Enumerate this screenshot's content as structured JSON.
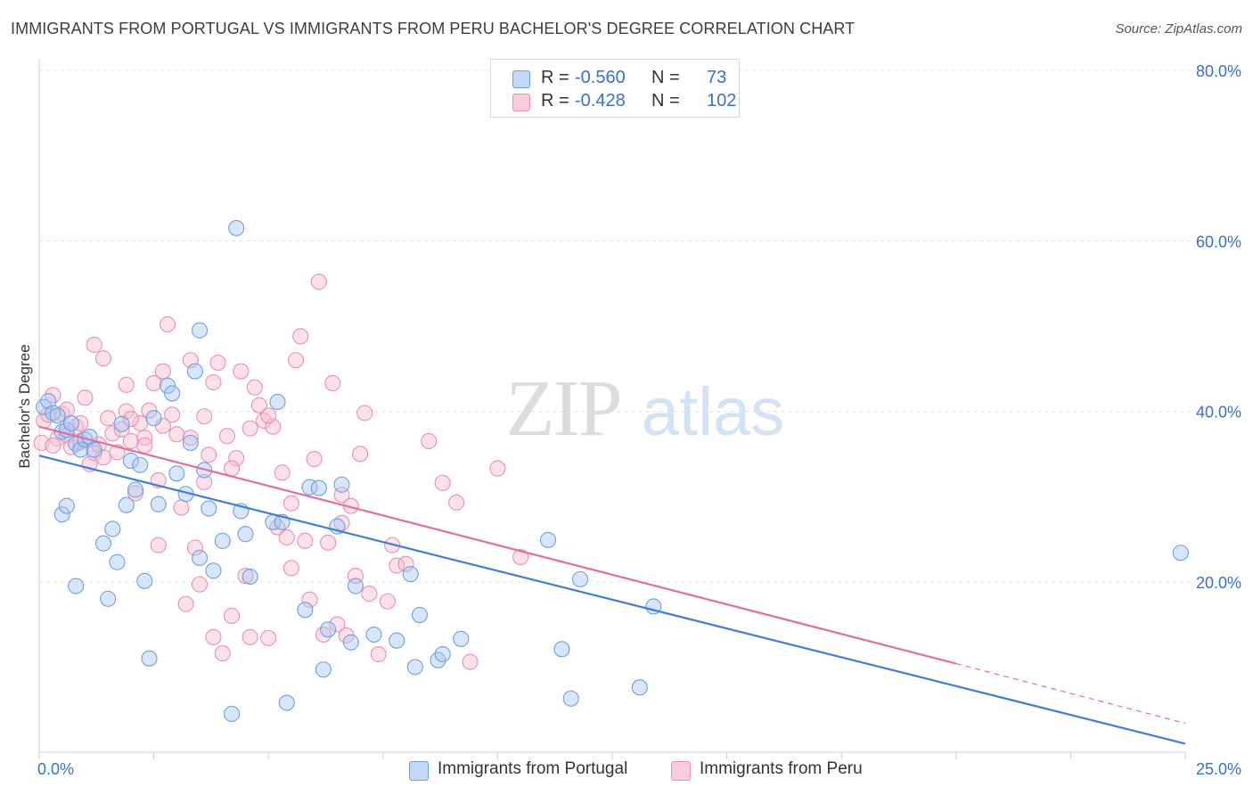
{
  "title": "IMMIGRANTS FROM PORTUGAL VS IMMIGRANTS FROM PERU BACHELOR'S DEGREE CORRELATION CHART",
  "source": "Source: ZipAtlas.com",
  "watermark": {
    "zip": "ZIP",
    "atlas": "atlas"
  },
  "legend_top": [
    {
      "r_label": "R =",
      "r_value": "-0.560",
      "n_label": "N =",
      "n_value": "73"
    },
    {
      "r_label": "R =",
      "r_value": "-0.428",
      "n_label": "N =",
      "n_value": "102"
    }
  ],
  "colors": {
    "portugal_fill": "#a9c7f2",
    "portugal_stroke": "#6f9ee3",
    "portugal_line": "#3f7fd6",
    "peru_fill": "#f7bcd0",
    "peru_stroke": "#ec8fae",
    "peru_line": "#e0709a",
    "grid": "#e3e3e3",
    "axis_text": "#3a6fcf"
  },
  "chart_data": {
    "type": "scatter",
    "title": "IMMIGRANTS FROM PORTUGAL VS IMMIGRANTS FROM PERU BACHELOR'S DEGREE CORRELATION CHART",
    "xlabel": "",
    "ylabel": "Bachelor's Degree",
    "xlim": [
      0,
      25
    ],
    "ylim": [
      0,
      80
    ],
    "x_ticks": [
      "0.0%",
      "25.0%"
    ],
    "y_ticks": [
      {
        "value": 20,
        "label": "20.0%"
      },
      {
        "value": 40,
        "label": "40.0%"
      },
      {
        "value": 60,
        "label": "60.0%"
      },
      {
        "value": 80,
        "label": "80.0%"
      }
    ],
    "series": [
      {
        "name": "Immigrants from Portugal",
        "R": -0.56,
        "N": 73,
        "trend": {
          "x0": 0,
          "y0": 34.8,
          "x1": 25,
          "y1": 1.0
        },
        "points": [
          [
            0.1,
            40.5
          ],
          [
            0.2,
            41.2
          ],
          [
            0.3,
            39.8
          ],
          [
            0.4,
            39.5
          ],
          [
            0.5,
            37.6
          ],
          [
            0.6,
            37.8
          ],
          [
            0.7,
            38.6
          ],
          [
            0.8,
            36.2
          ],
          [
            0.9,
            35.5
          ],
          [
            1.0,
            36.7
          ],
          [
            0.5,
            27.9
          ],
          [
            0.6,
            28.9
          ],
          [
            0.8,
            19.5
          ],
          [
            1.1,
            37.0
          ],
          [
            1.2,
            35.5
          ],
          [
            1.4,
            24.5
          ],
          [
            1.5,
            18.0
          ],
          [
            1.6,
            26.2
          ],
          [
            1.7,
            22.3
          ],
          [
            1.8,
            38.5
          ],
          [
            1.9,
            29.0
          ],
          [
            2.0,
            34.2
          ],
          [
            2.1,
            30.8
          ],
          [
            2.2,
            33.7
          ],
          [
            2.3,
            20.1
          ],
          [
            2.4,
            11.0
          ],
          [
            2.5,
            39.2
          ],
          [
            2.6,
            29.1
          ],
          [
            2.8,
            43.0
          ],
          [
            2.9,
            42.1
          ],
          [
            3.0,
            32.7
          ],
          [
            3.2,
            30.3
          ],
          [
            3.3,
            36.3
          ],
          [
            3.4,
            44.7
          ],
          [
            3.5,
            22.8
          ],
          [
            3.6,
            33.1
          ],
          [
            3.7,
            28.6
          ],
          [
            3.8,
            21.3
          ],
          [
            3.5,
            49.5
          ],
          [
            4.0,
            24.8
          ],
          [
            4.2,
            4.5
          ],
          [
            4.3,
            61.5
          ],
          [
            4.4,
            28.3
          ],
          [
            4.5,
            25.6
          ],
          [
            4.6,
            20.6
          ],
          [
            5.1,
            27.0
          ],
          [
            5.2,
            41.1
          ],
          [
            5.3,
            27.0
          ],
          [
            5.4,
            5.8
          ],
          [
            5.8,
            16.7
          ],
          [
            5.9,
            31.1
          ],
          [
            6.1,
            31.0
          ],
          [
            6.2,
            9.7
          ],
          [
            6.3,
            14.4
          ],
          [
            6.5,
            26.5
          ],
          [
            6.6,
            31.4
          ],
          [
            6.8,
            12.9
          ],
          [
            6.9,
            19.5
          ],
          [
            7.3,
            13.8
          ],
          [
            7.8,
            13.1
          ],
          [
            8.1,
            20.9
          ],
          [
            8.2,
            10.0
          ],
          [
            8.3,
            16.1
          ],
          [
            8.7,
            10.8
          ],
          [
            8.8,
            11.5
          ],
          [
            9.2,
            13.3
          ],
          [
            11.1,
            24.9
          ],
          [
            11.4,
            12.1
          ],
          [
            11.6,
            6.3
          ],
          [
            11.8,
            20.3
          ],
          [
            13.1,
            7.6
          ],
          [
            13.4,
            17.1
          ],
          [
            24.9,
            23.4
          ]
        ]
      },
      {
        "name": "Immigrants from Peru",
        "R": -0.428,
        "N": 102,
        "trend": {
          "x0": 0,
          "y0": 38.2,
          "x1": 20,
          "y1": 10.4,
          "dash_to_x": 25,
          "dash_to_y": 3.4
        },
        "points": [
          [
            0.05,
            36.3
          ],
          [
            0.1,
            38.9
          ],
          [
            0.2,
            39.6
          ],
          [
            0.3,
            41.9
          ],
          [
            0.4,
            36.8
          ],
          [
            0.5,
            39.7
          ],
          [
            0.6,
            37.2
          ],
          [
            0.7,
            35.8
          ],
          [
            0.8,
            38.2
          ],
          [
            0.9,
            36.4
          ],
          [
            1.0,
            41.6
          ],
          [
            1.1,
            33.8
          ],
          [
            1.2,
            47.8
          ],
          [
            1.3,
            36.1
          ],
          [
            1.4,
            46.2
          ],
          [
            1.5,
            39.2
          ],
          [
            1.6,
            37.4
          ],
          [
            1.7,
            35.2
          ],
          [
            1.8,
            37.9
          ],
          [
            1.9,
            40.0
          ],
          [
            2.0,
            36.5
          ],
          [
            2.1,
            30.4
          ],
          [
            2.2,
            38.6
          ],
          [
            2.3,
            36.9
          ],
          [
            2.4,
            40.1
          ],
          [
            2.5,
            43.3
          ],
          [
            2.6,
            24.3
          ],
          [
            2.7,
            44.7
          ],
          [
            2.8,
            50.2
          ],
          [
            2.9,
            39.6
          ],
          [
            3.0,
            37.3
          ],
          [
            3.1,
            28.7
          ],
          [
            3.2,
            17.4
          ],
          [
            3.3,
            46.0
          ],
          [
            3.4,
            24.0
          ],
          [
            3.5,
            19.7
          ],
          [
            3.6,
            39.4
          ],
          [
            3.7,
            34.9
          ],
          [
            3.8,
            13.5
          ],
          [
            3.9,
            45.7
          ],
          [
            4.0,
            11.6
          ],
          [
            4.1,
            37.1
          ],
          [
            4.2,
            16.0
          ],
          [
            4.3,
            34.5
          ],
          [
            4.4,
            44.7
          ],
          [
            4.5,
            20.7
          ],
          [
            4.6,
            13.5
          ],
          [
            4.7,
            42.8
          ],
          [
            4.8,
            40.7
          ],
          [
            4.9,
            38.9
          ],
          [
            5.0,
            13.4
          ],
          [
            5.1,
            38.2
          ],
          [
            5.2,
            26.4
          ],
          [
            5.3,
            32.8
          ],
          [
            5.4,
            25.2
          ],
          [
            5.5,
            21.6
          ],
          [
            5.6,
            46.0
          ],
          [
            5.7,
            48.8
          ],
          [
            5.8,
            24.8
          ],
          [
            5.9,
            17.9
          ],
          [
            6.0,
            34.4
          ],
          [
            6.1,
            55.2
          ],
          [
            6.2,
            13.8
          ],
          [
            6.3,
            24.6
          ],
          [
            6.4,
            43.3
          ],
          [
            6.5,
            15.0
          ],
          [
            6.6,
            30.2
          ],
          [
            6.7,
            13.7
          ],
          [
            6.8,
            28.9
          ],
          [
            6.9,
            20.7
          ],
          [
            7.0,
            35.0
          ],
          [
            7.1,
            39.8
          ],
          [
            7.2,
            18.6
          ],
          [
            7.4,
            11.5
          ],
          [
            7.6,
            17.7
          ],
          [
            7.8,
            21.9
          ],
          [
            8.0,
            22.1
          ],
          [
            8.5,
            36.5
          ],
          [
            8.8,
            31.6
          ],
          [
            9.1,
            29.3
          ],
          [
            9.4,
            10.6
          ],
          [
            10.0,
            33.3
          ],
          [
            10.5,
            22.9
          ],
          [
            1.2,
            35.1
          ],
          [
            2.3,
            36.0
          ],
          [
            0.6,
            40.2
          ],
          [
            1.9,
            43.1
          ],
          [
            2.7,
            38.3
          ],
          [
            3.6,
            31.7
          ],
          [
            4.6,
            38.0
          ],
          [
            3.8,
            43.4
          ],
          [
            5.0,
            39.5
          ],
          [
            1.4,
            34.6
          ],
          [
            2.0,
            39.1
          ],
          [
            0.3,
            36.0
          ],
          [
            0.9,
            38.6
          ],
          [
            3.3,
            36.9
          ],
          [
            4.2,
            33.3
          ],
          [
            5.5,
            29.2
          ],
          [
            6.6,
            26.9
          ],
          [
            7.7,
            24.3
          ],
          [
            2.6,
            31.9
          ]
        ]
      }
    ]
  },
  "bottom_legend": [
    {
      "label": "Immigrants from Portugal"
    },
    {
      "label": "Immigrants from Peru"
    }
  ]
}
